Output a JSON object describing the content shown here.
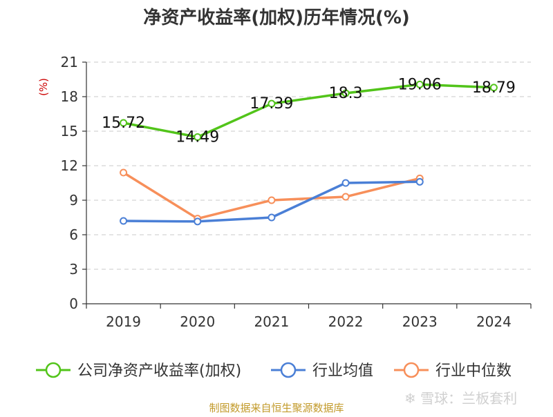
{
  "chart_data": {
    "type": "line",
    "title": "净资产收益率(加权)历年情况(%)",
    "unit_label": "(%)",
    "categories": [
      "2019",
      "2020",
      "2021",
      "2022",
      "2023",
      "2024"
    ],
    "ylim": [
      0,
      21
    ],
    "yticks": [
      0,
      3,
      6,
      9,
      12,
      15,
      18,
      21
    ],
    "grid": true,
    "legend_position": "bottom",
    "series": [
      {
        "name": "公司净资产收益率(加权)",
        "color": "#52c41a",
        "values": [
          15.72,
          14.49,
          17.39,
          18.3,
          19.06,
          18.79
        ],
        "labels": [
          "15.72",
          "14.49",
          "17.39",
          "18.3",
          "19.06",
          "18.79"
        ],
        "show_labels": true
      },
      {
        "name": "行业均值",
        "color": "#4a7fd6",
        "values": [
          7.2,
          7.15,
          7.5,
          10.5,
          10.6,
          null
        ],
        "show_labels": false
      },
      {
        "name": "行业中位数",
        "color": "#f78f5a",
        "values": [
          11.4,
          7.4,
          9.0,
          9.3,
          10.9,
          null
        ],
        "show_labels": false
      }
    ]
  },
  "footer": {
    "source": "制图数据来自恒生聚源数据库",
    "watermark": "❄ 雪球：兰板套利"
  }
}
